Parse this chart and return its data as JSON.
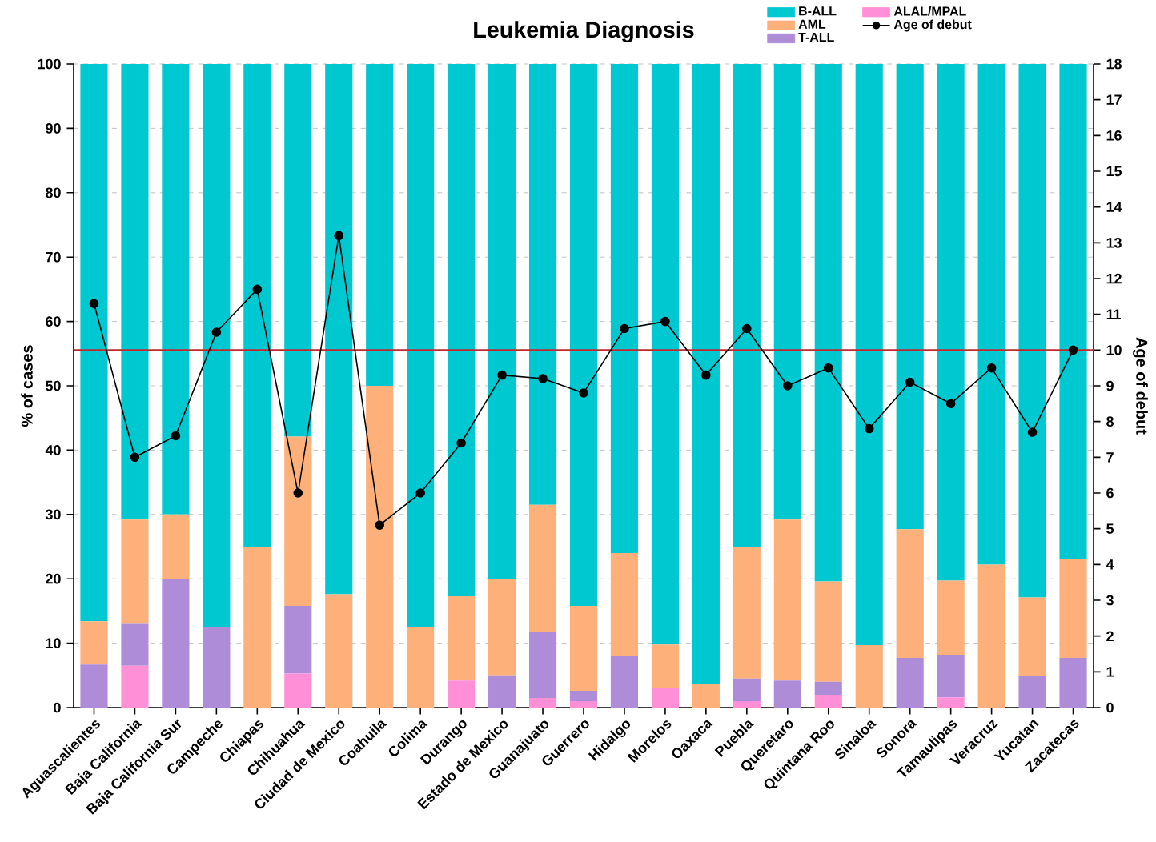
{
  "chart_data": {
    "type": "bar",
    "stacked": true,
    "title": "Leukemia Diagnosis",
    "ylabel": "% of cases",
    "y2label": "Age of debut",
    "categories": [
      "Aguascalientes",
      "Baja California",
      "Baja California Sur",
      "Campeche",
      "Chiapas",
      "Chihuahua",
      "Ciudad de Mexico",
      "Coahuila",
      "Colima",
      "Durango",
      "Estado de Mexico",
      "Guanajuato",
      "Guerrero",
      "Hidalgo",
      "Morelos",
      "Oaxaca",
      "Puebla",
      "Queretaro",
      "Quintana Roo",
      "Sinaloa",
      "Sonora",
      "Tamaulipas",
      "Veracruz",
      "Yucatan",
      "Zacatecas"
    ],
    "series": [
      {
        "name": "ALAL/MPAL",
        "color": "#ff90d8",
        "values": [
          0,
          6.5,
          0,
          0,
          0,
          5.3,
          0,
          0,
          0,
          4.2,
          0,
          1.5,
          1,
          0,
          3,
          0,
          1,
          0,
          2,
          0,
          0,
          1.6,
          0,
          0,
          0
        ]
      },
      {
        "name": "T-ALL",
        "color": "#ae8cd8",
        "values": [
          6.7,
          6.5,
          20,
          12.5,
          0,
          10.5,
          0,
          0,
          0,
          0,
          5,
          10.3,
          1.6,
          8,
          0,
          0,
          3.5,
          4.2,
          2,
          0,
          7.7,
          6.6,
          0,
          4.9,
          7.7
        ]
      },
      {
        "name": "AML",
        "color": "#fdb07a",
        "values": [
          6.7,
          16.2,
          10,
          0,
          25,
          26.3,
          17.6,
          50,
          12.5,
          13.1,
          15,
          19.7,
          13.2,
          16,
          6.8,
          3.7,
          20.5,
          25,
          15.6,
          9.7,
          20,
          11.5,
          22.2,
          12.2,
          15.4
        ]
      },
      {
        "name": "B-ALL",
        "color": "#00c8d0",
        "values": [
          86.6,
          70.8,
          70,
          87.5,
          75,
          57.9,
          82.4,
          50,
          87.5,
          82.7,
          80,
          68.5,
          84.2,
          76,
          90.2,
          96.3,
          75,
          70.8,
          80.4,
          90.3,
          72.3,
          80.3,
          77.8,
          82.9,
          76.9
        ]
      },
      {
        "name": "Age of debut",
        "type": "line",
        "axis": "y2",
        "color": "#000000",
        "values": [
          11.3,
          7.0,
          7.6,
          10.5,
          11.7,
          6.0,
          13.2,
          5.1,
          6.0,
          7.4,
          9.3,
          9.2,
          8.8,
          10.6,
          10.8,
          9.3,
          10.6,
          9.0,
          9.5,
          7.8,
          9.1,
          8.5,
          9.5,
          7.7,
          10.0
        ]
      }
    ],
    "marker": "circle",
    "line_style": "solid",
    "ylim": [
      0,
      100
    ],
    "yticks": [
      0,
      10,
      20,
      30,
      40,
      50,
      60,
      70,
      80,
      90,
      100
    ],
    "y2lim": [
      0,
      18
    ],
    "y2ticks": [
      0,
      1,
      2,
      3,
      4,
      5,
      6,
      7,
      8,
      9,
      10,
      11,
      12,
      13,
      14,
      15,
      16,
      17,
      18
    ],
    "ref_lines": [
      {
        "axis": "y2",
        "value": 10,
        "color": "#c0282d"
      }
    ],
    "grid": "y",
    "legend": "top right"
  }
}
